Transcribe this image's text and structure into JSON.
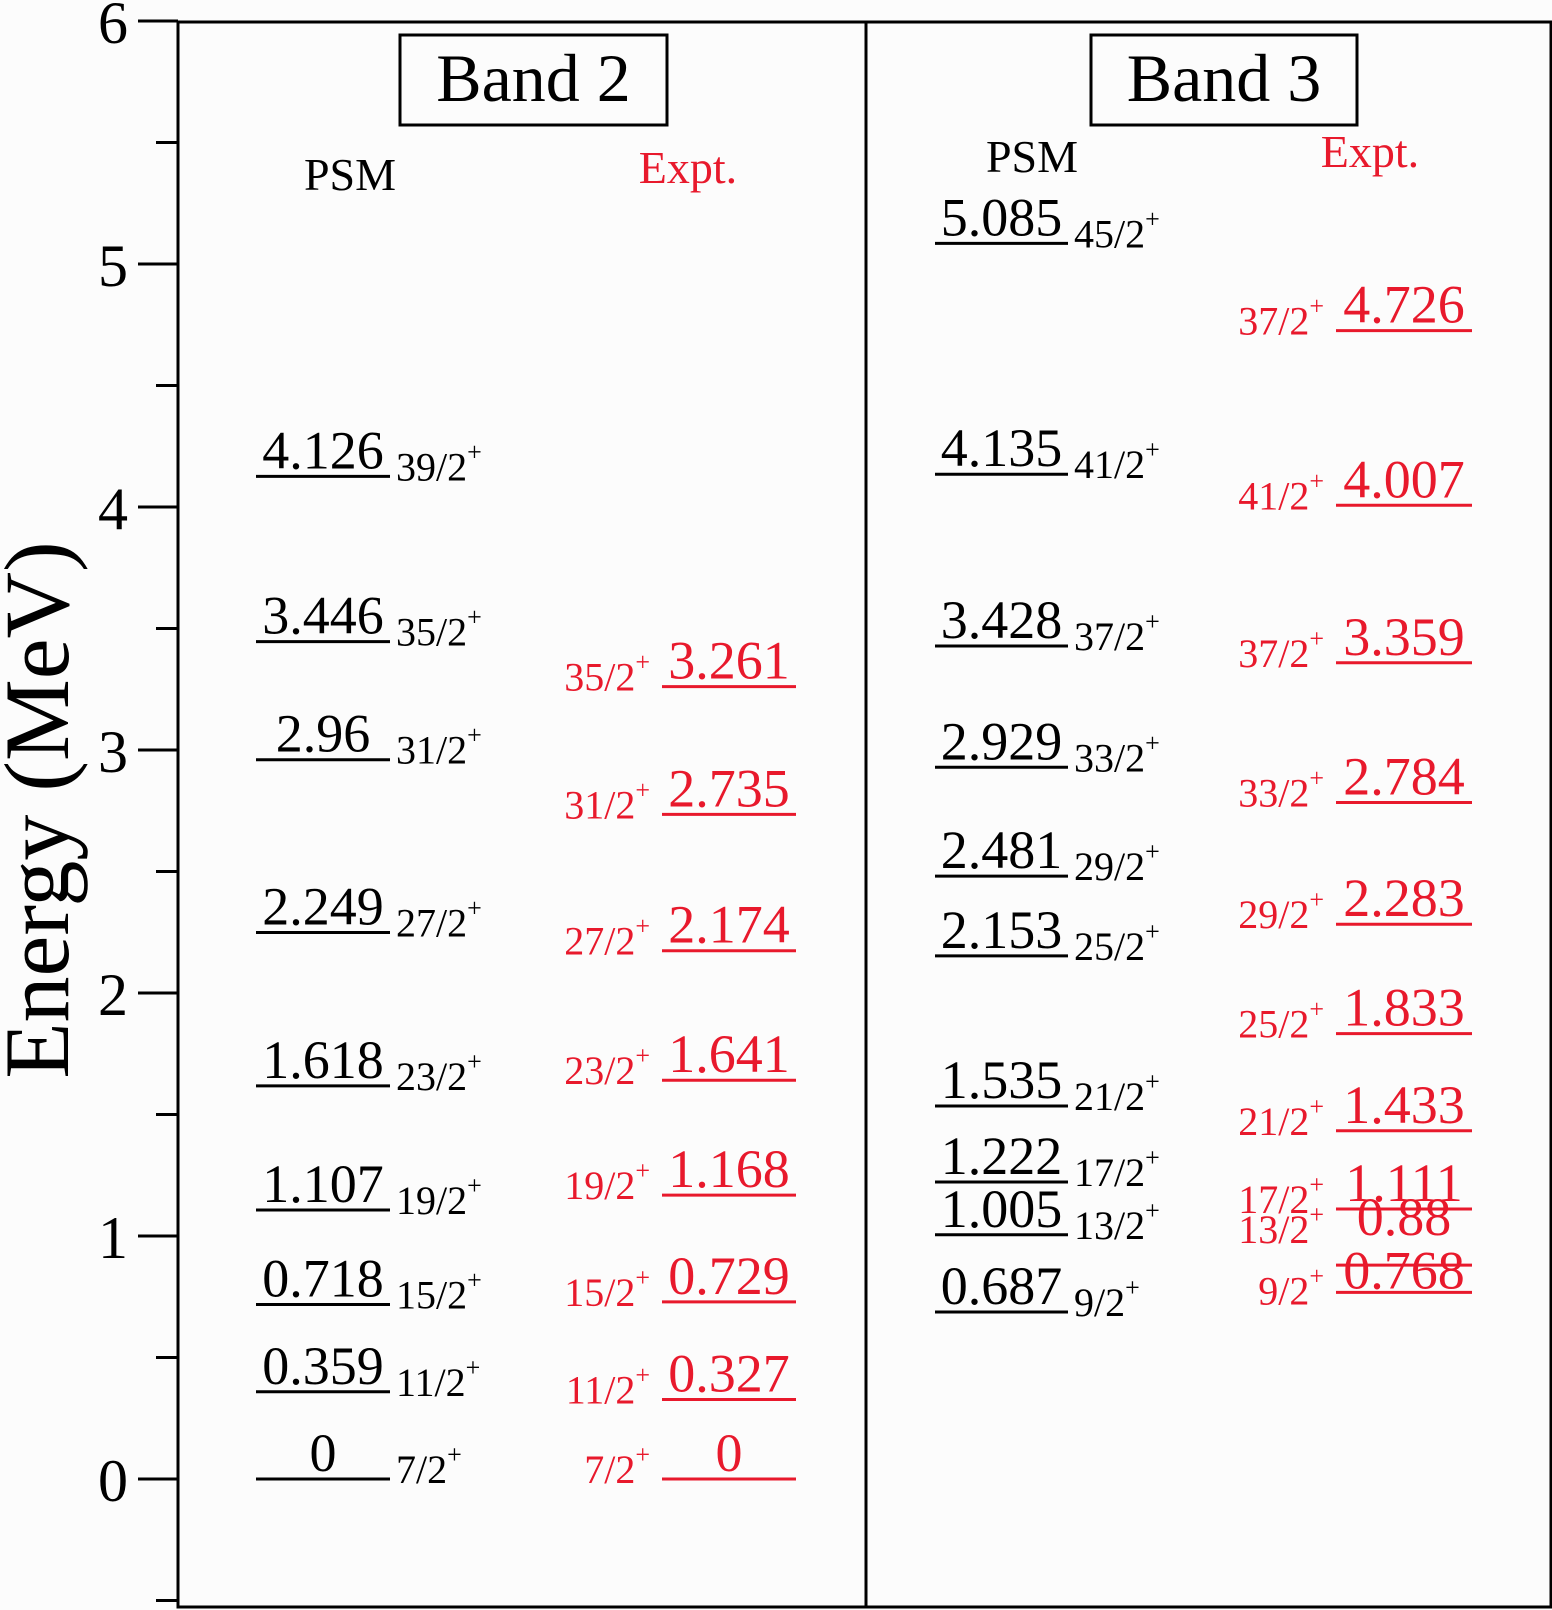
{
  "chart_data": {
    "type": "level-scheme",
    "ylabel": "Energy (MeV)",
    "ylim": [
      -0.5,
      6
    ],
    "yticks": [
      0,
      1,
      2,
      3,
      4,
      5,
      6
    ],
    "minor_step": 0.5,
    "colors": {
      "psm": "#000000",
      "expt": "#e8192c"
    },
    "panels": [
      {
        "title": "Band 2",
        "psm_label": "PSM",
        "expt_label": "Expt.",
        "psm": [
          {
            "energy": 0,
            "label": "0",
            "spin": "7/2"
          },
          {
            "energy": 0.359,
            "label": "0.359",
            "spin": "11/2"
          },
          {
            "energy": 0.718,
            "label": "0.718",
            "spin": "15/2"
          },
          {
            "energy": 1.107,
            "label": "1.107",
            "spin": "19/2"
          },
          {
            "energy": 1.618,
            "label": "1.618",
            "spin": "23/2"
          },
          {
            "energy": 2.249,
            "label": "2.249",
            "spin": "27/2"
          },
          {
            "energy": 2.96,
            "label": "2.96",
            "spin": "31/2"
          },
          {
            "energy": 3.446,
            "label": "3.446",
            "spin": "35/2"
          },
          {
            "energy": 4.126,
            "label": "4.126",
            "spin": "39/2"
          }
        ],
        "expt": [
          {
            "energy": 0,
            "label": "0",
            "spin": "7/2"
          },
          {
            "energy": 0.327,
            "label": "0.327",
            "spin": "11/2"
          },
          {
            "energy": 0.729,
            "label": "0.729",
            "spin": "15/2"
          },
          {
            "energy": 1.168,
            "label": "1.168",
            "spin": "19/2"
          },
          {
            "energy": 1.641,
            "label": "1.641",
            "spin": "23/2"
          },
          {
            "energy": 2.174,
            "label": "2.174",
            "spin": "27/2"
          },
          {
            "energy": 2.735,
            "label": "2.735",
            "spin": "31/2"
          },
          {
            "energy": 3.261,
            "label": "3.261",
            "spin": "35/2"
          }
        ]
      },
      {
        "title": "Band 3",
        "psm_label": "PSM",
        "expt_label": "Expt.",
        "psm": [
          {
            "energy": 0.687,
            "label": "0.687",
            "spin": "9/2"
          },
          {
            "energy": 1.005,
            "label": "1.005",
            "spin": "13/2"
          },
          {
            "energy": 1.222,
            "label": "1.222",
            "spin": "17/2"
          },
          {
            "energy": 1.535,
            "label": "1.535",
            "spin": "21/2"
          },
          {
            "energy": 2.153,
            "label": "2.153",
            "spin": "25/2"
          },
          {
            "energy": 2.481,
            "label": "2.481",
            "spin": "29/2"
          },
          {
            "energy": 2.929,
            "label": "2.929",
            "spin": "33/2"
          },
          {
            "energy": 3.428,
            "label": "3.428",
            "spin": "37/2"
          },
          {
            "energy": 4.135,
            "label": "4.135",
            "spin": "41/2"
          },
          {
            "energy": 5.085,
            "label": "5.085",
            "spin": "45/2"
          }
        ],
        "expt": [
          {
            "energy": 0.768,
            "label": "0.768",
            "spin": "9/2"
          },
          {
            "energy": 0.88,
            "label": "0.88",
            "spin": "13/2"
          },
          {
            "energy": 1.111,
            "label": "1.111",
            "spin": "17/2"
          },
          {
            "energy": 1.433,
            "label": "1.433",
            "spin": "21/2"
          },
          {
            "energy": 1.833,
            "label": "1.833",
            "spin": "25/2"
          },
          {
            "energy": 2.283,
            "label": "2.283",
            "spin": "29/2"
          },
          {
            "energy": 2.784,
            "label": "2.784",
            "spin": "33/2"
          },
          {
            "energy": 3.359,
            "label": "3.359",
            "spin": "37/2"
          },
          {
            "energy": 4.007,
            "label": "4.007",
            "spin": "41/2"
          },
          {
            "energy": 4.726,
            "label": "4.726",
            "spin": "37/2"
          }
        ]
      }
    ]
  }
}
